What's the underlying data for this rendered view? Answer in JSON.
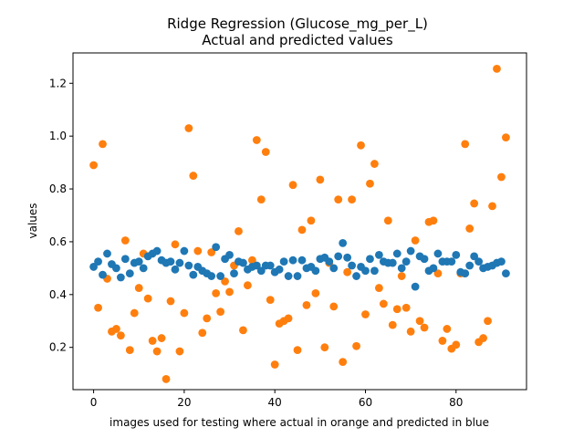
{
  "chart_data": {
    "type": "scatter",
    "title_line1": "Ridge Regression (Glucose_mg_per_L)",
    "title_line2": "Actual and predicted values",
    "xlabel": "images used for testing where actual in orange and predicted in blue",
    "ylabel": "values",
    "xlim": [
      -4.55,
      95.55
    ],
    "ylim": [
      0.04,
      1.315
    ],
    "xticks": [
      0,
      20,
      40,
      60,
      80
    ],
    "yticks": [
      0.2,
      0.4,
      0.6,
      0.8,
      1.0,
      1.2
    ],
    "xtick_labels": [
      "0",
      "20",
      "40",
      "60",
      "80"
    ],
    "ytick_labels": [
      "0.2",
      "0.4",
      "0.6",
      "0.8",
      "1.0",
      "1.2"
    ],
    "grid": false,
    "series": [
      {
        "color": "#ff7f0e",
        "x": [
          0,
          1,
          2,
          3,
          4,
          5,
          6,
          7,
          8,
          9,
          10,
          11,
          12,
          13,
          14,
          15,
          16,
          17,
          18,
          19,
          20,
          21,
          22,
          23,
          24,
          25,
          26,
          27,
          28,
          29,
          30,
          31,
          32,
          33,
          34,
          35,
          36,
          37,
          38,
          39,
          40,
          41,
          42,
          43,
          44,
          45,
          46,
          47,
          48,
          49,
          50,
          51,
          52,
          53,
          54,
          55,
          56,
          57,
          58,
          59,
          60,
          61,
          62,
          63,
          64,
          65,
          66,
          67,
          68,
          69,
          70,
          71,
          72,
          73,
          74,
          75,
          76,
          77,
          78,
          79,
          80,
          81,
          82,
          83,
          84,
          85,
          86,
          87,
          88,
          89,
          90,
          91
        ],
        "y": [
          0.89,
          0.35,
          0.97,
          0.46,
          0.26,
          0.27,
          0.245,
          0.605,
          0.19,
          0.33,
          0.425,
          0.555,
          0.385,
          0.225,
          0.185,
          0.235,
          0.08,
          0.375,
          0.59,
          0.185,
          0.33,
          1.03,
          0.85,
          0.565,
          0.255,
          0.31,
          0.56,
          0.405,
          0.335,
          0.45,
          0.41,
          0.51,
          0.64,
          0.265,
          0.435,
          0.53,
          0.985,
          0.76,
          0.94,
          0.38,
          0.135,
          0.29,
          0.3,
          0.31,
          0.815,
          0.19,
          0.645,
          0.36,
          0.68,
          0.405,
          0.835,
          0.2,
          0.52,
          0.355,
          0.76,
          0.145,
          0.485,
          0.76,
          0.205,
          0.965,
          0.325,
          0.82,
          0.895,
          0.425,
          0.365,
          0.68,
          0.285,
          0.345,
          0.47,
          0.35,
          0.26,
          0.605,
          0.3,
          0.275,
          0.675,
          0.68,
          0.48,
          0.225,
          0.27,
          0.195,
          0.21,
          0.48,
          0.97,
          0.65,
          0.745,
          0.22,
          0.235,
          0.3,
          0.735,
          1.255,
          0.845,
          0.995
        ]
      },
      {
        "color": "#1f77b4",
        "x": [
          0,
          1,
          2,
          3,
          4,
          5,
          6,
          7,
          8,
          9,
          10,
          11,
          12,
          13,
          14,
          15,
          16,
          17,
          18,
          19,
          20,
          21,
          22,
          23,
          24,
          25,
          26,
          27,
          28,
          29,
          30,
          31,
          32,
          33,
          34,
          35,
          36,
          37,
          38,
          39,
          40,
          41,
          42,
          43,
          44,
          45,
          46,
          47,
          48,
          49,
          50,
          51,
          52,
          53,
          54,
          55,
          56,
          57,
          58,
          59,
          60,
          61,
          62,
          63,
          64,
          65,
          66,
          67,
          68,
          69,
          70,
          71,
          72,
          73,
          74,
          75,
          76,
          77,
          78,
          79,
          80,
          81,
          82,
          83,
          84,
          85,
          86,
          87,
          88,
          89,
          90,
          91
        ],
        "y": [
          0.505,
          0.525,
          0.475,
          0.555,
          0.515,
          0.5,
          0.465,
          0.535,
          0.48,
          0.52,
          0.525,
          0.5,
          0.545,
          0.555,
          0.565,
          0.53,
          0.52,
          0.525,
          0.495,
          0.52,
          0.565,
          0.51,
          0.475,
          0.505,
          0.49,
          0.48,
          0.47,
          0.58,
          0.47,
          0.535,
          0.55,
          0.48,
          0.525,
          0.52,
          0.495,
          0.505,
          0.51,
          0.49,
          0.51,
          0.51,
          0.485,
          0.495,
          0.525,
          0.47,
          0.53,
          0.47,
          0.53,
          0.5,
          0.505,
          0.49,
          0.535,
          0.54,
          0.525,
          0.5,
          0.545,
          0.595,
          0.54,
          0.51,
          0.47,
          0.505,
          0.49,
          0.535,
          0.49,
          0.55,
          0.525,
          0.52,
          0.52,
          0.555,
          0.5,
          0.525,
          0.565,
          0.43,
          0.545,
          0.535,
          0.49,
          0.5,
          0.555,
          0.525,
          0.525,
          0.525,
          0.55,
          0.485,
          0.48,
          0.51,
          0.545,
          0.525,
          0.5,
          0.505,
          0.51,
          0.52,
          0.525,
          0.48
        ]
      }
    ]
  }
}
